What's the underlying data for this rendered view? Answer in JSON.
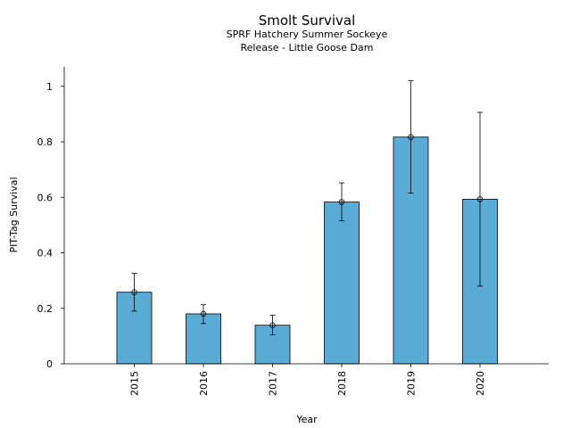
{
  "chart_data": {
    "type": "bar",
    "title": "Smolt Survival",
    "subtitle_lines": [
      "SPRF Hatchery Summer Sockeye",
      "Release - Little Goose Dam"
    ],
    "xlabel": "Year",
    "ylabel": "PIT-Tag Survival",
    "categories": [
      "2015",
      "2016",
      "2017",
      "2018",
      "2019",
      "2020"
    ],
    "values": [
      0.258,
      0.18,
      0.139,
      0.583,
      0.817,
      0.593
    ],
    "error_low": [
      0.19,
      0.145,
      0.104,
      0.515,
      0.615,
      0.28
    ],
    "error_high": [
      0.326,
      0.213,
      0.175,
      0.652,
      1.02,
      0.906
    ],
    "ylim": [
      0,
      1.07
    ],
    "yticks": [
      0,
      0.2,
      0.4,
      0.6,
      0.8,
      1
    ],
    "ytick_labels": [
      "0",
      "0.2",
      "0.4",
      "0.6",
      "0.8",
      "1"
    ],
    "grid": false,
    "bar_color": "#5aabd6",
    "edge_color": "#000000"
  }
}
